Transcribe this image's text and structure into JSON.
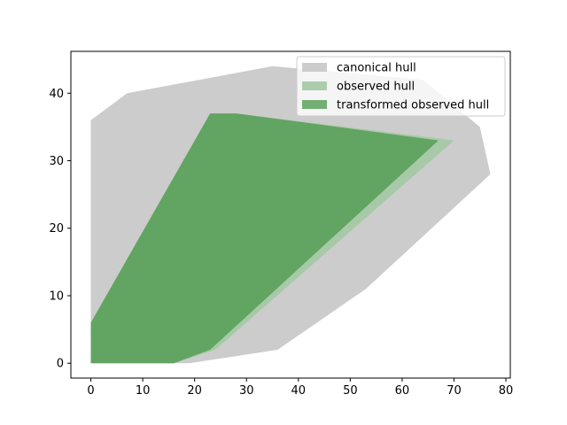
{
  "chart_data": {
    "type": "area",
    "title": "",
    "xlabel": "",
    "ylabel": "",
    "xlim": [
      -3.85,
      80.85
    ],
    "ylim": [
      -2.2,
      46.2
    ],
    "x_ticks": [
      0,
      10,
      20,
      30,
      40,
      50,
      60,
      70,
      80
    ],
    "y_ticks": [
      0,
      10,
      20,
      30,
      40
    ],
    "grid": false,
    "legend_position": "top-right",
    "series": [
      {
        "name": "canonical hull",
        "color": "#cccccc",
        "opacity": 1.0,
        "polygon": [
          [
            0,
            0
          ],
          [
            19,
            0
          ],
          [
            36,
            2
          ],
          [
            53,
            11
          ],
          [
            77,
            28
          ],
          [
            75,
            35
          ],
          [
            64,
            42
          ],
          [
            35,
            44
          ],
          [
            7,
            40
          ],
          [
            0,
            36
          ]
        ]
      },
      {
        "name": "observed hull",
        "color": "#a3c9a3",
        "opacity": 0.9,
        "polygon": [
          [
            0,
            0
          ],
          [
            16,
            0
          ],
          [
            24,
            2
          ],
          [
            70,
            33
          ],
          [
            28,
            37
          ],
          [
            23,
            37
          ],
          [
            0,
            6
          ]
        ]
      },
      {
        "name": "transformed observed hull",
        "color": "#4e9a4e",
        "opacity": 0.78,
        "polygon": [
          [
            0,
            0
          ],
          [
            16,
            0
          ],
          [
            23,
            2
          ],
          [
            67,
            33
          ],
          [
            28,
            37
          ],
          [
            23,
            37
          ],
          [
            0,
            6
          ]
        ]
      }
    ]
  }
}
